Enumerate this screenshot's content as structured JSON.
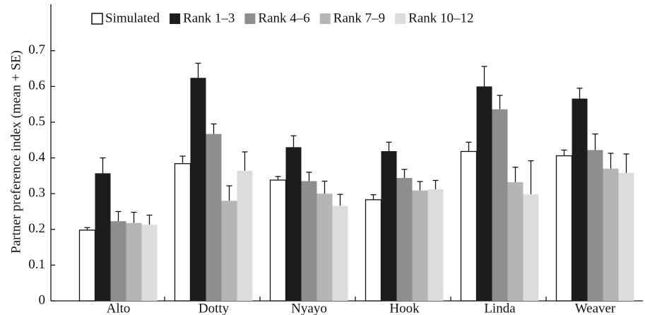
{
  "chart_data": {
    "type": "bar",
    "y_label": "Partner preference index (mean + SE)",
    "categories": [
      "Alto",
      "Dotty",
      "Nyayo",
      "Hook",
      "Linda",
      "Weaver"
    ],
    "series": [
      {
        "name": "Simulated",
        "color": "#ffffff",
        "edgecolor": "#111111",
        "values": [
          0.198,
          0.384,
          0.338,
          0.283,
          0.418,
          0.406
        ],
        "errors": [
          0.007,
          0.021,
          0.01,
          0.014,
          0.026,
          0.016
        ]
      },
      {
        "name": "Rank 1–3",
        "color": "#1c1c1c",
        "values": [
          0.357,
          0.624,
          0.43,
          0.419,
          0.6,
          0.566
        ],
        "errors": [
          0.043,
          0.041,
          0.032,
          0.025,
          0.056,
          0.029
        ]
      },
      {
        "name": "Rank 4–6",
        "color": "#8e8e8e",
        "values": [
          0.223,
          0.467,
          0.335,
          0.344,
          0.536,
          0.422
        ],
        "errors": [
          0.027,
          0.028,
          0.025,
          0.024,
          0.039,
          0.045
        ]
      },
      {
        "name": "Rank 7–9",
        "color": "#b5b5b5",
        "values": [
          0.218,
          0.28,
          0.3,
          0.309,
          0.332,
          0.37
        ],
        "errors": [
          0.03,
          0.042,
          0.035,
          0.025,
          0.042,
          0.043
        ]
      },
      {
        "name": "Rank 10–12",
        "color": "#dcdcdc",
        "values": [
          0.213,
          0.364,
          0.266,
          0.312,
          0.298,
          0.358
        ],
        "errors": [
          0.027,
          0.053,
          0.032,
          0.025,
          0.094,
          0.053
        ]
      }
    ],
    "ylim": [
      0,
      0.83
    ],
    "yticks": [
      0,
      0.1,
      0.2,
      0.3,
      0.4,
      0.5,
      0.6,
      0.7
    ],
    "error_bars": "upper",
    "legend": "top"
  }
}
